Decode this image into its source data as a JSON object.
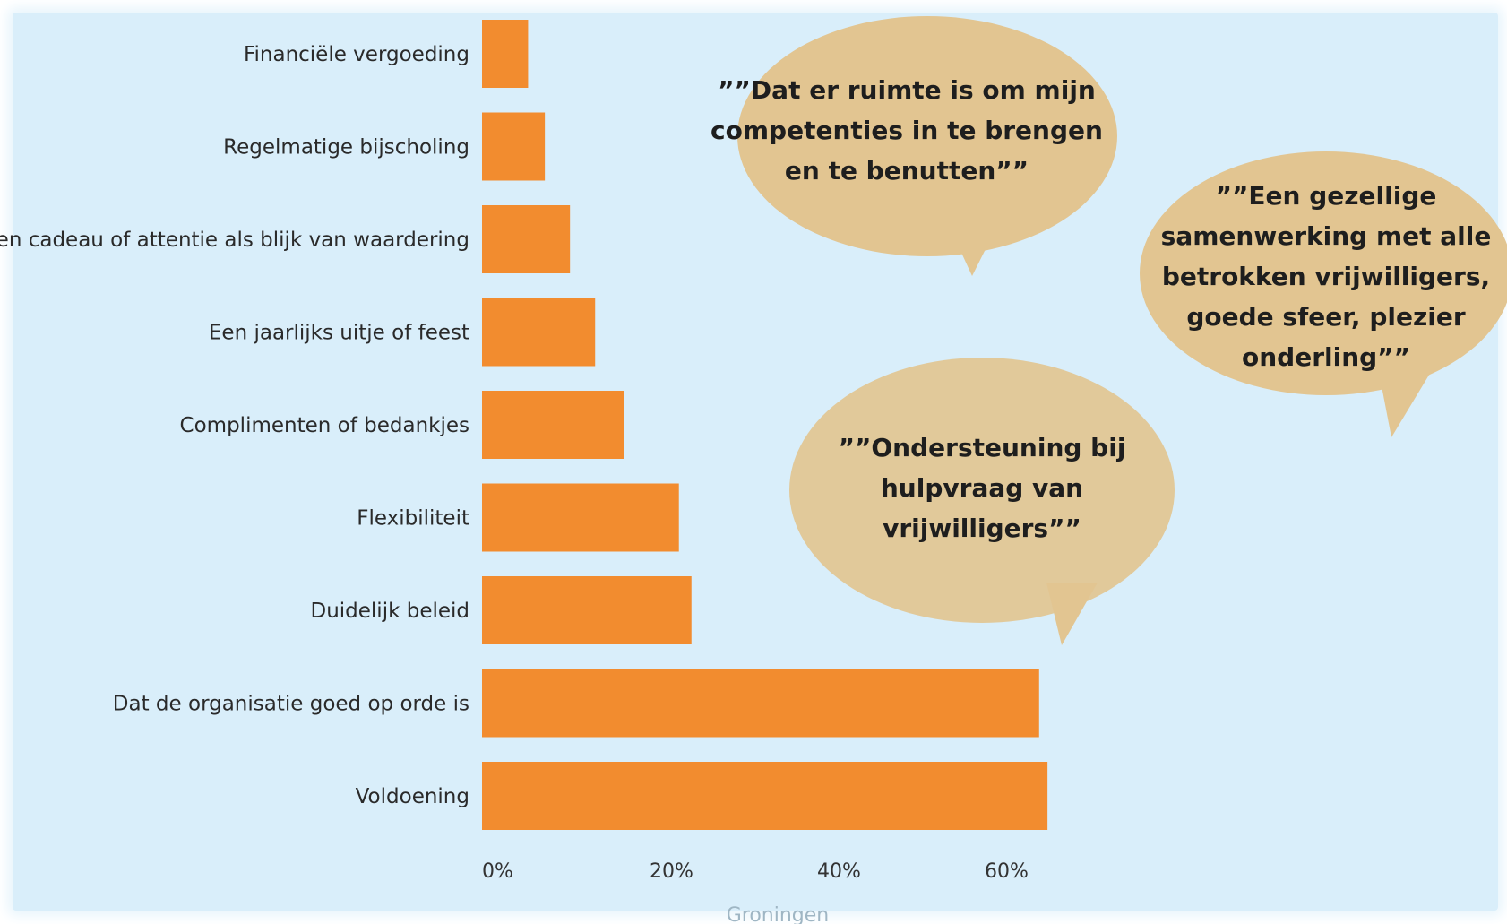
{
  "chart_data": {
    "type": "bar",
    "orientation": "horizontal",
    "categories": [
      "Financiële vergoeding",
      "Regelmatige bijscholing",
      "Een cadeau of attentie als blijk van waardering",
      "Een jaarlijks uitje of feest",
      "Complimenten of bedankjes",
      "Flexibiliteit",
      "Duidelijk beleid",
      "Dat de organisatie goed op orde is",
      "Voldoening"
    ],
    "values": [
      5.5,
      7.5,
      10.5,
      13.5,
      17,
      23.5,
      25,
      66.5,
      67.5
    ],
    "xlim": [
      0,
      70
    ],
    "xticks": [
      {
        "value": 0,
        "label": "0%"
      },
      {
        "value": 20,
        "label": "20%"
      },
      {
        "value": 40,
        "label": "40%"
      },
      {
        "value": 60,
        "label": "60%"
      }
    ],
    "xlabel": "Groningen",
    "bar_color": "#f28c2f",
    "grid": false
  },
  "quotes": [
    {
      "lines": [
        "””Dat er ruimte is om mijn",
        "competenties in te brengen",
        "en te benutten””"
      ]
    },
    {
      "lines": [
        "””Een gezellige",
        "samenwerking met alle",
        "betrokken vrijwilligers,",
        "goede sfeer, plezier",
        "onderling””"
      ]
    },
    {
      "lines": [
        "””Ondersteuning bij",
        "hulpvraag van",
        "vrijwilligers””"
      ]
    }
  ],
  "colors": {
    "background": "#d9eefa",
    "bubble": "#e2c591",
    "bar": "#f28c2f"
  }
}
